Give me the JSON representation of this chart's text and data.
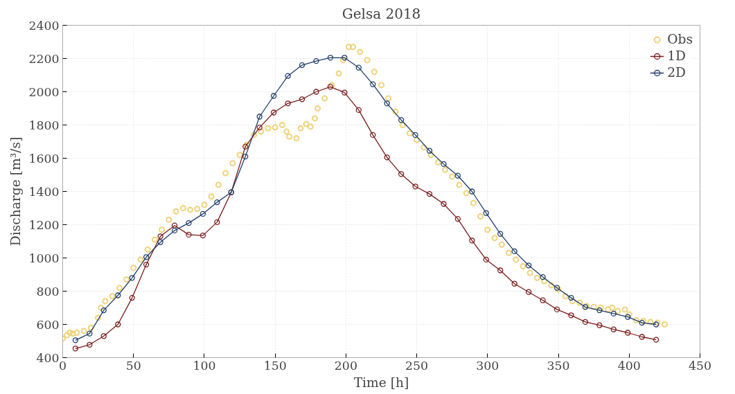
{
  "chart_data": {
    "type": "line",
    "title": "Gelsa 2018",
    "xlabel": "Time [h]",
    "ylabel": "Discharge [m³/s]",
    "xlim": [
      0,
      450
    ],
    "xticks": [
      0,
      50,
      100,
      150,
      200,
      250,
      300,
      350,
      400,
      450
    ],
    "ylim": [
      400,
      2400
    ],
    "yticks": [
      400,
      600,
      800,
      1000,
      1200,
      1400,
      1600,
      1800,
      2000,
      2200,
      2400
    ],
    "grid": true,
    "legend": "top right",
    "marker": "circle",
    "series": [
      {
        "name": "Obs",
        "type": "scatter",
        "color": "#f0d27a",
        "x": [
          0,
          3,
          5,
          7,
          10,
          15,
          20,
          25,
          27,
          30,
          35,
          40,
          45,
          50,
          55,
          60,
          65,
          70,
          75,
          80,
          85,
          90,
          95,
          100,
          105,
          110,
          115,
          120,
          125,
          130,
          135,
          140,
          145,
          150,
          155,
          158,
          160,
          165,
          168,
          172,
          175,
          178,
          180,
          185,
          190,
          195,
          198,
          202,
          205,
          210,
          215,
          220,
          225,
          230,
          235,
          240,
          245,
          250,
          255,
          260,
          265,
          270,
          275,
          280,
          285,
          290,
          295,
          300,
          305,
          310,
          315,
          320,
          325,
          330,
          335,
          340,
          345,
          350,
          355,
          360,
          365,
          370,
          375,
          380,
          385,
          388,
          392,
          397,
          400,
          405,
          410,
          415,
          420,
          425
        ],
        "values": [
          515,
          535,
          550,
          545,
          550,
          560,
          580,
          640,
          700,
          740,
          770,
          820,
          870,
          940,
          990,
          1050,
          1110,
          1170,
          1230,
          1280,
          1300,
          1290,
          1295,
          1320,
          1370,
          1440,
          1510,
          1570,
          1620,
          1680,
          1740,
          1760,
          1780,
          1785,
          1800,
          1760,
          1730,
          1720,
          1780,
          1805,
          1790,
          1840,
          1900,
          1960,
          2040,
          2110,
          2190,
          2270,
          2270,
          2240,
          2190,
          2120,
          2040,
          1960,
          1880,
          1800,
          1750,
          1710,
          1665,
          1620,
          1575,
          1530,
          1490,
          1440,
          1390,
          1330,
          1250,
          1170,
          1120,
          1080,
          1030,
          990,
          950,
          910,
          880,
          860,
          835,
          810,
          770,
          740,
          730,
          710,
          705,
          700,
          690,
          700,
          680,
          690,
          660,
          625,
          620,
          615,
          610,
          600
        ]
      },
      {
        "name": "1D",
        "color": "#7b1a1a",
        "x": [
          9,
          19,
          29,
          39,
          49,
          59,
          69,
          79,
          89,
          99,
          109,
          119,
          129,
          139,
          149,
          159,
          169,
          179,
          189,
          199,
          209,
          219,
          229,
          239,
          249,
          259,
          269,
          279,
          289,
          299,
          309,
          319,
          329,
          339,
          349,
          359,
          369,
          379,
          389,
          399,
          409,
          419
        ],
        "values": [
          455,
          478,
          530,
          600,
          760,
          960,
          1130,
          1195,
          1140,
          1135,
          1215,
          1395,
          1670,
          1785,
          1875,
          1930,
          1955,
          2000,
          2030,
          1995,
          1890,
          1740,
          1605,
          1505,
          1430,
          1385,
          1325,
          1235,
          1105,
          990,
          925,
          845,
          795,
          745,
          690,
          655,
          615,
          595,
          570,
          550,
          525,
          508
        ]
      },
      {
        "name": "2D",
        "color": "#1e3d6b",
        "x": [
          9,
          19,
          29,
          39,
          49,
          59,
          69,
          79,
          89,
          99,
          109,
          119,
          129,
          139,
          149,
          159,
          169,
          179,
          189,
          199,
          209,
          219,
          229,
          239,
          249,
          259,
          269,
          279,
          289,
          299,
          309,
          319,
          329,
          339,
          349,
          359,
          369,
          379,
          389,
          399,
          409,
          419
        ],
        "values": [
          505,
          545,
          685,
          775,
          880,
          1005,
          1095,
          1165,
          1210,
          1265,
          1335,
          1395,
          1610,
          1850,
          1975,
          2095,
          2160,
          2185,
          2205,
          2205,
          2145,
          2045,
          1930,
          1830,
          1740,
          1645,
          1565,
          1495,
          1400,
          1270,
          1145,
          1040,
          955,
          885,
          820,
          760,
          705,
          685,
          665,
          645,
          610,
          600
        ]
      }
    ]
  }
}
